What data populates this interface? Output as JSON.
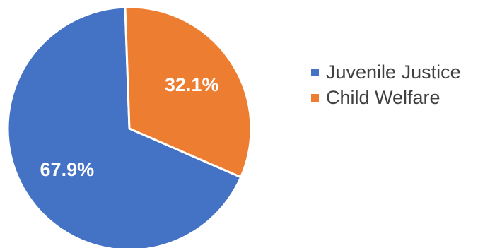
{
  "chart_data": {
    "type": "pie",
    "title": "",
    "legend_position": "right",
    "slices": [
      {
        "name": "Juvenile Justice",
        "value": 67.9,
        "label": "67.9%",
        "color": "#4472C4"
      },
      {
        "name": "Child Welfare",
        "value": 32.1,
        "label": "32.1%",
        "color": "#ED7D31"
      }
    ]
  }
}
